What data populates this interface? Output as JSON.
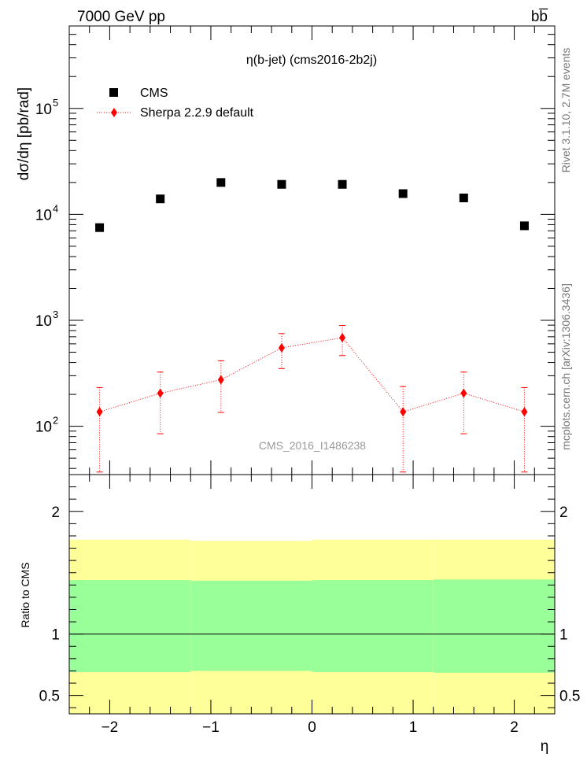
{
  "header": {
    "left": "7000 GeV pp",
    "right": "bb̅"
  },
  "side_labels": {
    "rivet": "Rivet 3.1.10, 2.7M events",
    "mcplots": "mcplots.cern.ch [arXiv:1306.3436]"
  },
  "chart_data": [
    {
      "type": "scatter",
      "panel": "main",
      "title": "η(b-jet) (cms2016-2b2j)",
      "ylabel": "dσ/dη [pb/rad]",
      "xlabel": "",
      "yscale": "log",
      "xlim": [
        -2.4,
        2.4
      ],
      "ylim": [
        35,
        600000
      ],
      "yticks": [
        {
          "value": 100,
          "label": "10",
          "exp": "2"
        },
        {
          "value": 1000,
          "label": "10",
          "exp": "3"
        },
        {
          "value": 10000,
          "label": "10",
          "exp": "4"
        },
        {
          "value": 100000,
          "label": "10",
          "exp": "5"
        }
      ],
      "legend": {
        "placement": "top-left"
      },
      "watermark": "CMS_2016_I1486238",
      "series": [
        {
          "name": "CMS",
          "marker": "square",
          "color": "#000000",
          "x": [
            -2.1,
            -1.5,
            -0.9,
            -0.3,
            0.3,
            0.9,
            1.5,
            2.1
          ],
          "y": [
            7500,
            14000,
            20000,
            19200,
            19200,
            15700,
            14300,
            7800
          ]
        },
        {
          "name": "Sherpa 2.2.9 default",
          "marker": "diamond",
          "line": "dotted",
          "color": "#ff0000",
          "x": [
            -2.1,
            -1.5,
            -0.9,
            -0.3,
            0.3,
            0.9,
            1.5,
            2.1
          ],
          "y": [
            137,
            205,
            275,
            550,
            685,
            137,
            205,
            137
          ],
          "y_err_low": [
            100,
            120,
            140,
            200,
            220,
            100,
            120,
            100
          ],
          "y_err_high": [
            95,
            120,
            140,
            200,
            210,
            100,
            120,
            95
          ]
        }
      ]
    },
    {
      "type": "area",
      "panel": "ratio",
      "ylabel": "Ratio to CMS",
      "xlabel": "η",
      "xlim": [
        -2.4,
        2.4
      ],
      "ylim": [
        0.35,
        2.3
      ],
      "xticks": [
        -2,
        -1,
        0,
        1,
        2
      ],
      "xtick_labels": [
        "−2",
        "−1",
        "0",
        "1",
        "2"
      ],
      "yticks": [
        0.5,
        1,
        2
      ],
      "ytick_labels": [
        "0.5",
        "1",
        "2"
      ],
      "reference_line": 1,
      "bands": {
        "edges": [
          -2.4,
          -1.2,
          0.0,
          1.2,
          2.4
        ],
        "outer": {
          "color": "#ffff99",
          "low": [
            0.0,
            0.0,
            0.0,
            0.0
          ],
          "high": [
            1.77,
            1.76,
            1.77,
            1.77
          ]
        },
        "inner": {
          "color": "#99ff99",
          "low": [
            0.69,
            0.7,
            0.69,
            0.685
          ],
          "high": [
            1.44,
            1.435,
            1.44,
            1.445
          ]
        }
      }
    }
  ]
}
